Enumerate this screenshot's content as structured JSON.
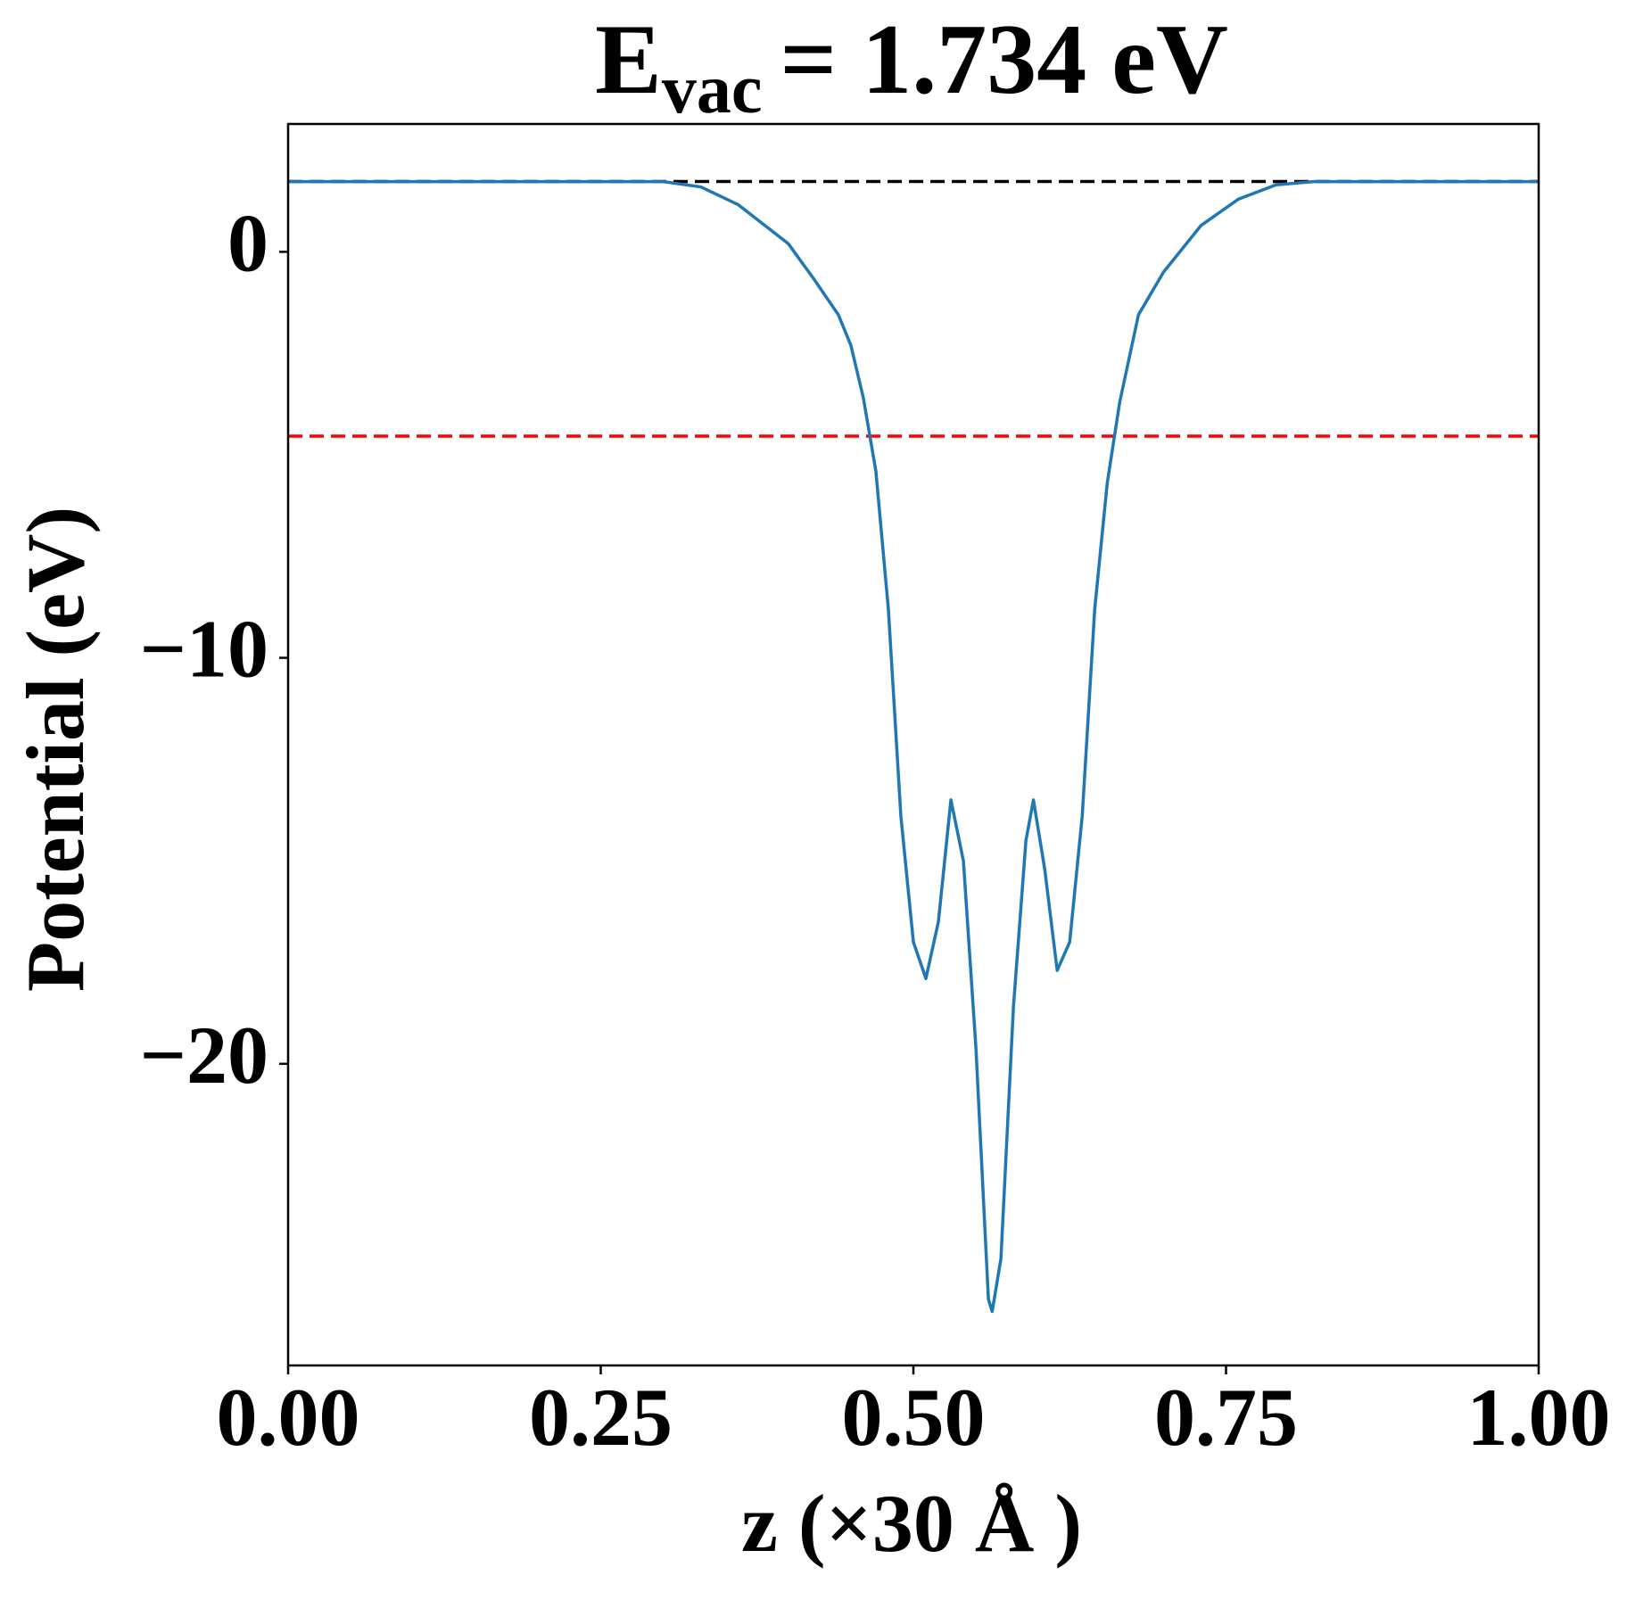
{
  "chart_data": {
    "type": "line",
    "title_main": "E",
    "title_subscript": "vac",
    "title_rest": "= 1.734 eV",
    "xlabel": "z (×30 Å )",
    "ylabel": "Potential (eV)",
    "x": [
      0,
      0.1,
      0.2,
      0.3,
      0.33,
      0.36,
      0.4,
      0.42,
      0.44,
      0.45,
      0.46,
      0.47,
      0.48,
      0.49,
      0.5,
      0.51,
      0.52,
      0.53,
      0.54,
      0.55,
      0.56,
      0.563,
      0.57,
      0.58,
      0.59,
      0.596,
      0.605,
      0.615,
      0.625,
      0.635,
      0.645,
      0.655,
      0.665,
      0.68,
      0.7,
      0.73,
      0.76,
      0.79,
      0.82,
      0.9,
      1.0
    ],
    "series": [
      {
        "color": "#1f77b4",
        "values": [
          1.73,
          1.73,
          1.73,
          1.73,
          1.6,
          1.16,
          0.2,
          -0.65,
          -1.55,
          -2.3,
          -3.6,
          -5.4,
          -8.8,
          -13.9,
          -17.0,
          -17.9,
          -16.5,
          -13.5,
          -15.0,
          -19.6,
          -25.8,
          -26.1,
          -24.8,
          -18.6,
          -14.5,
          -13.5,
          -15.2,
          -17.7,
          -17.0,
          -13.9,
          -8.8,
          -5.7,
          -3.7,
          -1.55,
          -0.5,
          0.65,
          1.3,
          1.65,
          1.73,
          1.73,
          1.73
        ]
      }
    ],
    "hlines": [
      {
        "value": 1.734,
        "color": "#000000"
      },
      {
        "value": -4.54,
        "color": "#ff0000"
      }
    ],
    "xlim": [
      0,
      1
    ],
    "ylim": [
      -27.43,
      3.15
    ],
    "xticks": [
      {
        "value": 0,
        "label": "0.00"
      },
      {
        "value": 0.25,
        "label": "0.25"
      },
      {
        "value": 0.5,
        "label": "0.50"
      },
      {
        "value": 0.75,
        "label": "0.75"
      },
      {
        "value": 1,
        "label": "1.00"
      }
    ],
    "yticks": [
      {
        "value": -20,
        "label": "−20"
      },
      {
        "value": -10,
        "label": "−10"
      },
      0
    ],
    "grid": false
  }
}
